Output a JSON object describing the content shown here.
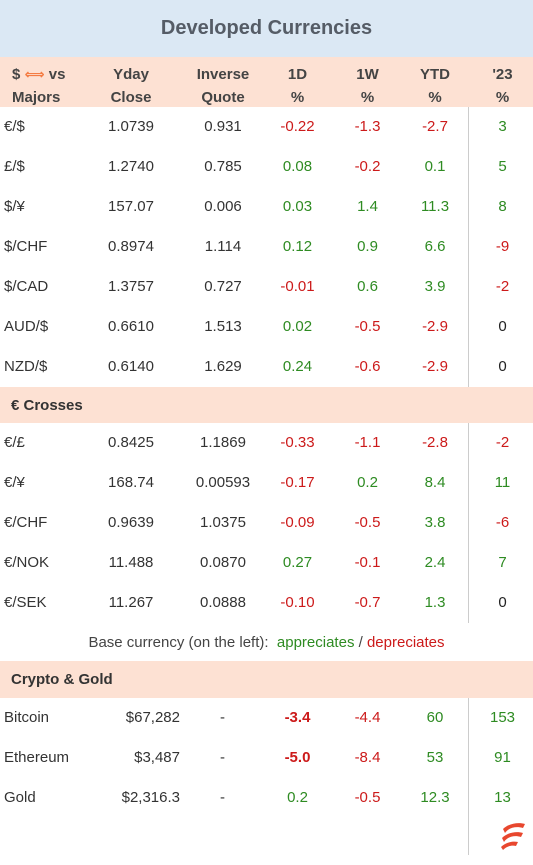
{
  "title": "Developed Currencies",
  "header": {
    "col0_line1": "$",
    "col0_arrow": "⟺",
    "col0_vs": "vs",
    "col0_line2": "Majors",
    "col1_line1": "Yday",
    "col1_line2": "Close",
    "col2_line1": "Inverse",
    "col2_line2": "Quote",
    "col3_line1": "1D",
    "col3_line2": "%",
    "col4_line1": "1W",
    "col4_line2": "%",
    "col5_line1": "YTD",
    "col5_line2": "%",
    "col6_line1": "'23",
    "col6_line2": "%"
  },
  "majors": [
    {
      "pair": "€/$",
      "close": "1.0739",
      "inverse": "0.931",
      "d1": "-0.22",
      "w1": "-1.3",
      "ytd": "-2.7",
      "y23": "3"
    },
    {
      "pair": "£/$",
      "close": "1.2740",
      "inverse": "0.785",
      "d1": "0.08",
      "w1": "-0.2",
      "ytd": "0.1",
      "y23": "5"
    },
    {
      "pair": "$/¥",
      "close": "157.07",
      "inverse": "0.006",
      "d1": "0.03",
      "w1": "1.4",
      "ytd": "11.3",
      "y23": "8"
    },
    {
      "pair": "$/CHF",
      "close": "0.8974",
      "inverse": "1.114",
      "d1": "0.12",
      "w1": "0.9",
      "ytd": "6.6",
      "y23": "-9"
    },
    {
      "pair": "$/CAD",
      "close": "1.3757",
      "inverse": "0.727",
      "d1": "-0.01",
      "w1": "0.6",
      "ytd": "3.9",
      "y23": "-2"
    },
    {
      "pair": "AUD/$",
      "close": "0.6610",
      "inverse": "1.513",
      "d1": "0.02",
      "w1": "-0.5",
      "ytd": "-2.9",
      "y23": "0"
    },
    {
      "pair": "NZD/$",
      "close": "0.6140",
      "inverse": "1.629",
      "d1": "0.24",
      "w1": "-0.6",
      "ytd": "-2.9",
      "y23": "0"
    }
  ],
  "crosses_title": "€ Crosses",
  "crosses": [
    {
      "pair": "€/£",
      "close": "0.8425",
      "inverse": "1.1869",
      "d1": "-0.33",
      "w1": "-1.1",
      "ytd": "-2.8",
      "y23": "-2"
    },
    {
      "pair": "€/¥",
      "close": "168.74",
      "inverse": "0.00593",
      "d1": "-0.17",
      "w1": "0.2",
      "ytd": "8.4",
      "y23": "11"
    },
    {
      "pair": "€/CHF",
      "close": "0.9639",
      "inverse": "1.0375",
      "d1": "-0.09",
      "w1": "-0.5",
      "ytd": "3.8",
      "y23": "-6"
    },
    {
      "pair": "€/NOK",
      "close": "11.488",
      "inverse": "0.0870",
      "d1": "0.27",
      "w1": "-0.1",
      "ytd": "2.4",
      "y23": "7"
    },
    {
      "pair": "€/SEK",
      "close": "11.267",
      "inverse": "0.0888",
      "d1": "-0.10",
      "w1": "-0.7",
      "ytd": "1.3",
      "y23": "0"
    }
  ],
  "legend": {
    "prefix": "Base currency (on the left):",
    "appreciates": "appreciates",
    "sep": "/",
    "depreciates": "depreciates"
  },
  "crypto_title": "Crypto & Gold",
  "crypto": [
    {
      "name": "Bitcoin",
      "close": "$67,282",
      "inverse": "-",
      "d1": "-3.4",
      "w1": "-4.4",
      "ytd": "60",
      "y23": "153",
      "d1_bold": true
    },
    {
      "name": "Ethereum",
      "close": "$3,487",
      "inverse": "-",
      "d1": "-5.0",
      "w1": "-8.4",
      "ytd": "53",
      "y23": "91",
      "d1_bold": true
    },
    {
      "name": "Gold",
      "close": "$2,316.3",
      "inverse": "-",
      "d1": "0.2",
      "w1": "-0.5",
      "ytd": "12.3",
      "y23": "13",
      "d1_bold": false
    }
  ],
  "colors": {
    "positive": "#2e8b22",
    "negative": "#cc1a1a",
    "neutral": "#222222",
    "title_bg": "#dbe8f4",
    "header_bg": "#fde1d3",
    "brand": "#e8472e"
  },
  "logo_icon": "brand-logo-icon"
}
